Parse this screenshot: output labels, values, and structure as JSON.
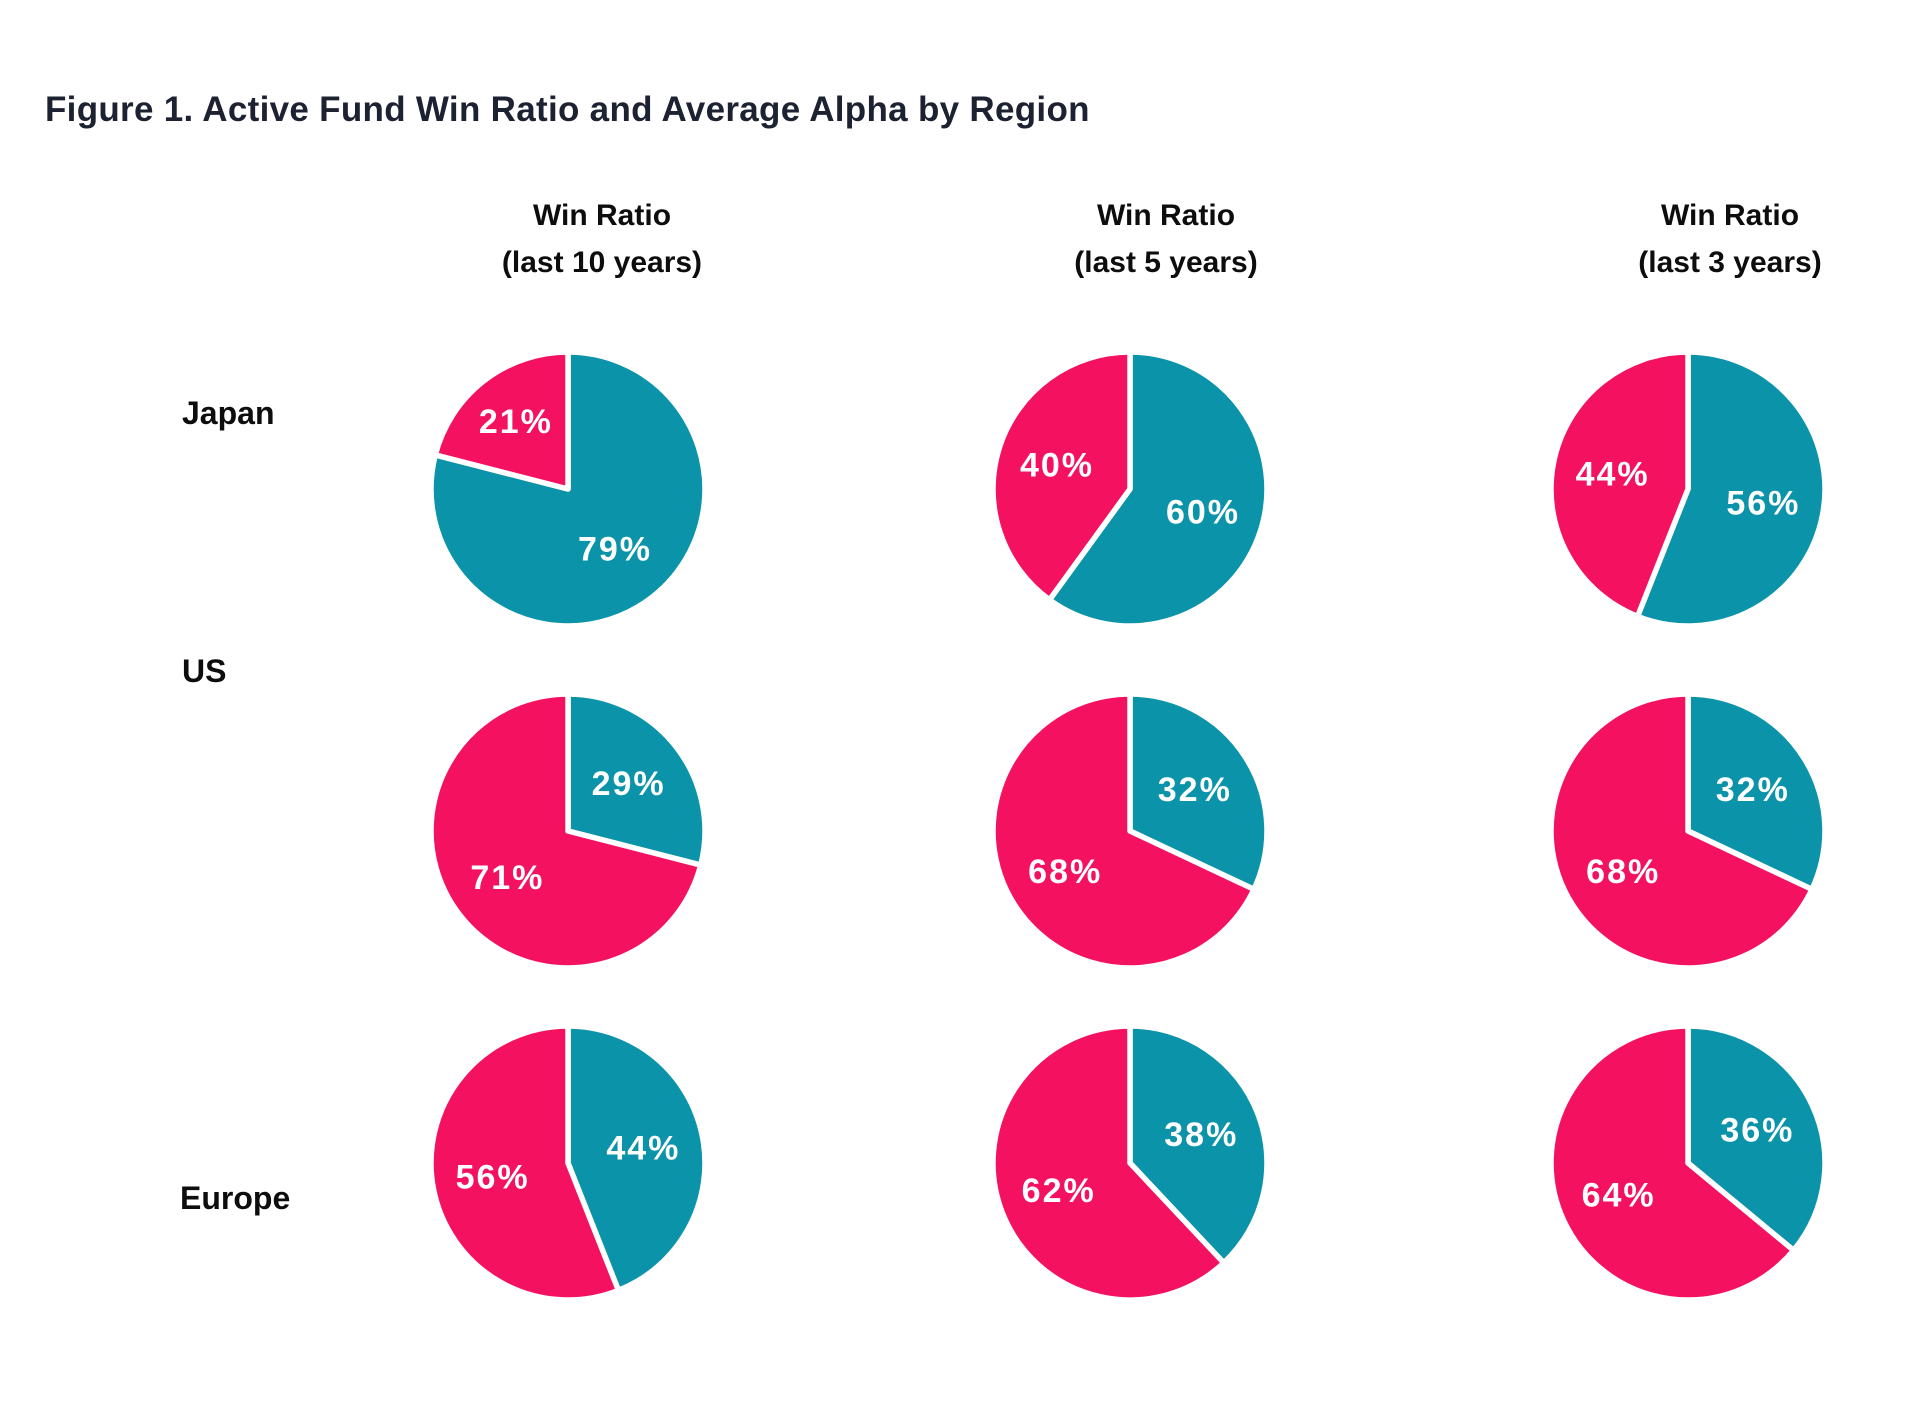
{
  "title": "Figure 1. Active Fund Win Ratio and Average Alpha by Region",
  "columns": [
    {
      "line1": "Win Ratio",
      "line2": "(last 10 years)"
    },
    {
      "line1": "Win Ratio",
      "line2": "(last 5 years)"
    },
    {
      "line1": "Win Ratio",
      "line2": "(last 3 years)"
    }
  ],
  "rows": [
    "Japan",
    "US",
    "Europe"
  ],
  "colors": {
    "pink": "#F4115F",
    "teal": "#0B93A9",
    "title_text": "#1D2232",
    "label_text": "#0D0D0D",
    "slice_label_text": "#FFFFFF",
    "background": "#FFFFFF"
  },
  "chart_data": {
    "type": "pie",
    "title": "Figure 1. Active Fund Win Ratio and Average Alpha by Region",
    "grid": {
      "rows": [
        "Japan",
        "US",
        "Europe"
      ],
      "columns": [
        "Win Ratio (last 10 years)",
        "Win Ratio (last 5 years)",
        "Win Ratio (last 3 years)"
      ]
    },
    "series_colors": {
      "pink": "#F4115F",
      "teal": "#0B93A9"
    },
    "slice_start": "teal slice starts at 12 o'clock and sweeps clockwise; pink fills the remainder",
    "pies": [
      {
        "region": "Japan",
        "period": "last 10 years",
        "slices": [
          {
            "name": "pink",
            "pct": 21,
            "label": "21%"
          },
          {
            "name": "teal",
            "pct": 79,
            "label": "79%"
          }
        ]
      },
      {
        "region": "Japan",
        "period": "last 5 years",
        "slices": [
          {
            "name": "pink",
            "pct": 40,
            "label": "40%"
          },
          {
            "name": "teal",
            "pct": 60,
            "label": "60%"
          }
        ]
      },
      {
        "region": "Japan",
        "period": "last 3 years",
        "slices": [
          {
            "name": "pink",
            "pct": 44,
            "label": "44%"
          },
          {
            "name": "teal",
            "pct": 56,
            "label": "56%"
          }
        ]
      },
      {
        "region": "US",
        "period": "last 10 years",
        "slices": [
          {
            "name": "pink",
            "pct": 71,
            "label": "71%"
          },
          {
            "name": "teal",
            "pct": 29,
            "label": "29%"
          }
        ]
      },
      {
        "region": "US",
        "period": "last 5 years",
        "slices": [
          {
            "name": "pink",
            "pct": 68,
            "label": "68%"
          },
          {
            "name": "teal",
            "pct": 32,
            "label": "32%"
          }
        ]
      },
      {
        "region": "US",
        "period": "last 3 years",
        "slices": [
          {
            "name": "pink",
            "pct": 68,
            "label": "68%"
          },
          {
            "name": "teal",
            "pct": 32,
            "label": "32%"
          }
        ]
      },
      {
        "region": "Europe",
        "period": "last 10 years",
        "slices": [
          {
            "name": "pink",
            "pct": 56,
            "label": "56%"
          },
          {
            "name": "teal",
            "pct": 44,
            "label": "44%"
          }
        ]
      },
      {
        "region": "Europe",
        "period": "last 5 years",
        "slices": [
          {
            "name": "pink",
            "pct": 62,
            "label": "62%"
          },
          {
            "name": "teal",
            "pct": 38,
            "label": "38%"
          }
        ]
      },
      {
        "region": "Europe",
        "period": "last 3 years",
        "slices": [
          {
            "name": "pink",
            "pct": 64,
            "label": "64%"
          },
          {
            "name": "teal",
            "pct": 36,
            "label": "36%"
          }
        ]
      }
    ]
  }
}
